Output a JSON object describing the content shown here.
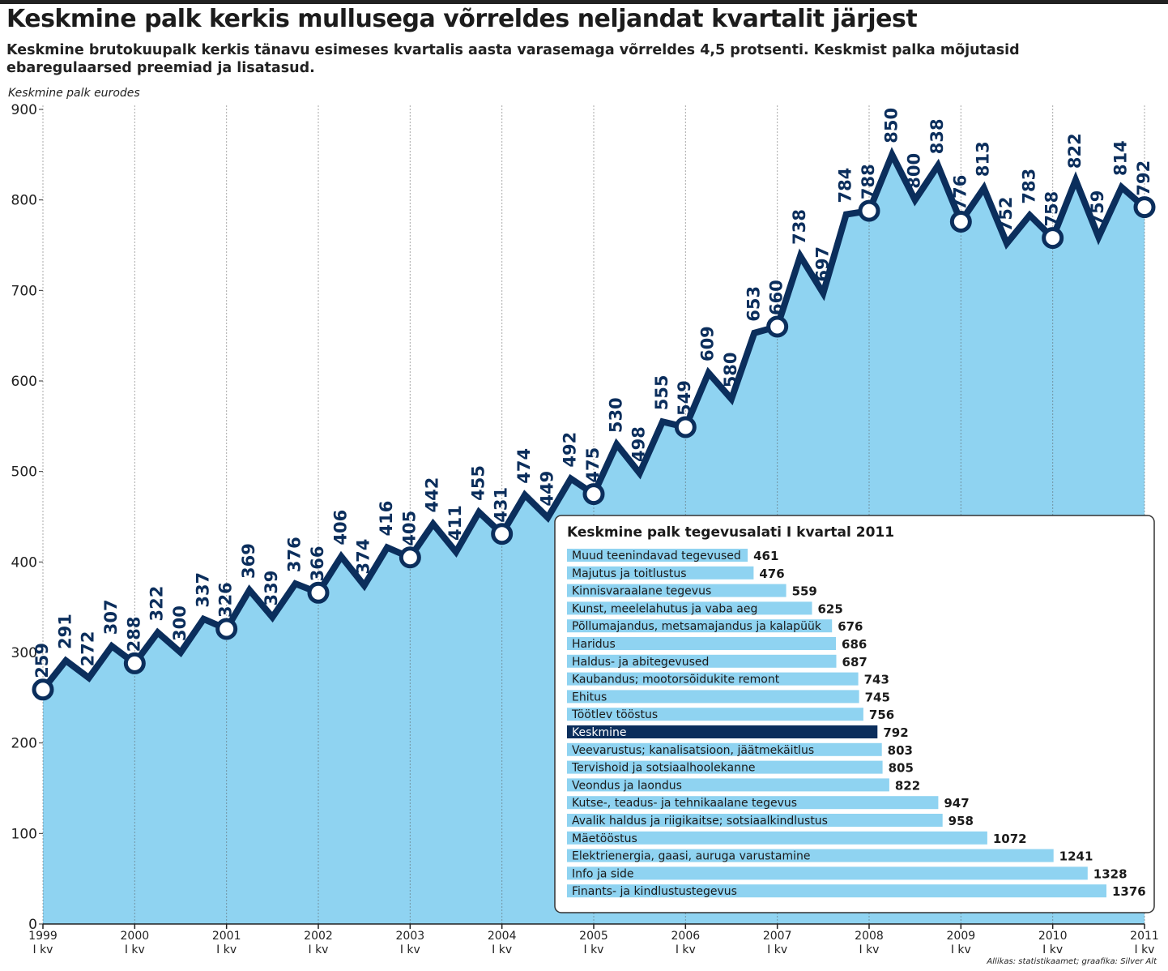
{
  "header": {
    "title": "Keskmine palk kerkis mullusega võrreldes neljandat kvartalit järjest",
    "subtitle": "Keskmine brutokuupalk kerkis tänavu esimeses kvartalis aasta varasemaga võrreldes 4,5 protsenti. Keskmist palka mõjutasid ebaregulaarsed preemiad ja lisatasud.",
    "ylabel": "Keskmine palk eurodes"
  },
  "source": "Allikas: statistikaamet; graafika: Silver Alt",
  "colors": {
    "area": "#8fd3f1",
    "line": "#0b2e5c",
    "highlight": "#0b2e5c",
    "bar": "#8fd3f1",
    "grid": "#555555"
  },
  "chart_data": [
    {
      "type": "area",
      "ylabel": "Keskmine palk eurodes",
      "ylim": [
        0,
        900
      ],
      "yticks": [
        0,
        100,
        200,
        300,
        400,
        500,
        600,
        700,
        800,
        900
      ],
      "grid": "vertical lines at each year",
      "x_ticks": [
        {
          "year": "1999",
          "q": "I kv"
        },
        {
          "year": "2000",
          "q": "I kv"
        },
        {
          "year": "2001",
          "q": "I kv"
        },
        {
          "year": "2002",
          "q": "I kv"
        },
        {
          "year": "2003",
          "q": "I kv"
        },
        {
          "year": "2004",
          "q": "I kv"
        },
        {
          "year": "2005",
          "q": "I kv"
        },
        {
          "year": "2006",
          "q": "I kv"
        },
        {
          "year": "2007",
          "q": "I kv"
        },
        {
          "year": "2008",
          "q": "I kv"
        },
        {
          "year": "2009",
          "q": "I kv"
        },
        {
          "year": "2010",
          "q": "I kv"
        },
        {
          "year": "2011",
          "q": "I kv"
        }
      ],
      "values": [
        259,
        291,
        272,
        307,
        288,
        322,
        300,
        337,
        326,
        369,
        339,
        376,
        366,
        406,
        374,
        416,
        405,
        442,
        411,
        455,
        431,
        474,
        449,
        492,
        475,
        530,
        498,
        555,
        549,
        609,
        580,
        653,
        660,
        738,
        697,
        784,
        788,
        850,
        800,
        838,
        776,
        813,
        752,
        783,
        758,
        822,
        759,
        814,
        792
      ],
      "highlighted": "I kv of each year"
    },
    {
      "type": "bar",
      "title": "Keskmine palk tegevusalati I kvartal 2011",
      "highlight": "Keskmine",
      "categories": [
        "Muud teenindavad tegevused",
        "Majutus ja toitlustus",
        "Kinnisvaraalane tegevus",
        "Kunst, meelelahutus ja vaba aeg",
        "Põllumajandus, metsamajandus ja kalapüük",
        "Haridus",
        "Haldus- ja abitegevused",
        "Kaubandus; mootorsõidukite remont",
        "Ehitus",
        "Töötlev tööstus",
        "Keskmine",
        "Veevarustus; kanalisatsioon, jäätmekäitlus",
        "Tervishoid ja sotsiaalhoolekanne",
        "Veondus ja laondus",
        "Kutse-, teadus- ja tehnikaalane tegevus",
        "Avalik haldus ja riigikaitse; sotsiaalkindlustus",
        "Mäetööstus",
        "Elektrienergia, gaasi, auruga varustamine",
        "Info ja side",
        "Finants- ja kindlustustegevus"
      ],
      "values": [
        461,
        476,
        559,
        625,
        676,
        686,
        687,
        743,
        745,
        756,
        792,
        803,
        805,
        822,
        947,
        958,
        1072,
        1241,
        1328,
        1376
      ]
    }
  ]
}
